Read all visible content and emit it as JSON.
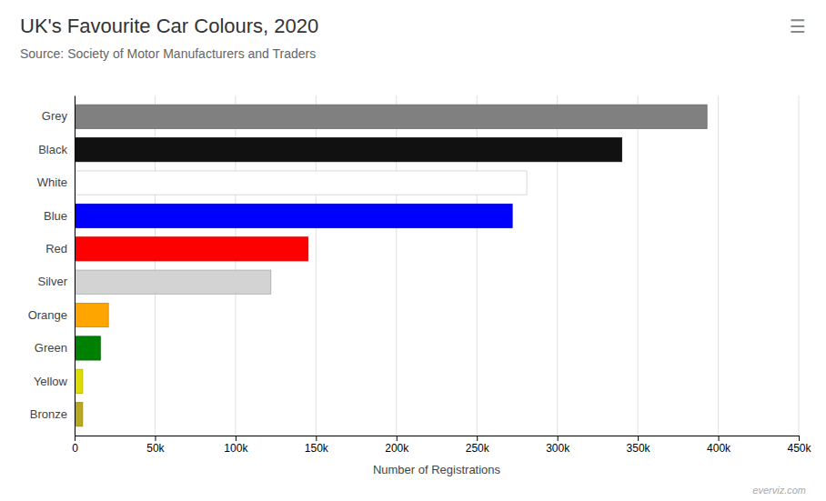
{
  "chart_data": {
    "type": "bar",
    "orientation": "horizontal",
    "title": "UK's Favourite Car Colours, 2020",
    "subtitle": "Source: Society of Motor Manufacturers and Traders",
    "annotations": [
      "☰",
      "everviz.com"
    ],
    "categories": [
      "Grey",
      "Black",
      "White",
      "Blue",
      "Red",
      "Silver",
      "Orange",
      "Green",
      "Yellow",
      "Bronze"
    ],
    "values": [
      393000,
      340000,
      281000,
      272000,
      145000,
      122000,
      21000,
      16000,
      5000,
      5000
    ],
    "colors": [
      "#808080",
      "#111111",
      "#ffffff",
      "#0000ff",
      "#ff0000",
      "#d3d3d3",
      "#ffa500",
      "#008000",
      "#dddd00",
      "#b8a820"
    ],
    "xlabel": "Number of Registrations",
    "xlim": [
      0,
      450000
    ],
    "xticks": [
      0,
      {
        "value": 50000,
        "label": "50k"
      },
      {
        "value": 100000,
        "label": "100k"
      },
      {
        "value": 150000,
        "label": "150k"
      },
      {
        "value": 200000,
        "label": "200k"
      },
      {
        "value": 250000,
        "label": "250k"
      },
      {
        "value": 300000,
        "label": "300k"
      },
      {
        "value": 350000,
        "label": "350k"
      },
      {
        "value": 400000,
        "label": "400k"
      },
      {
        "value": 450000,
        "label": "450k"
      }
    ],
    "grid": true
  }
}
